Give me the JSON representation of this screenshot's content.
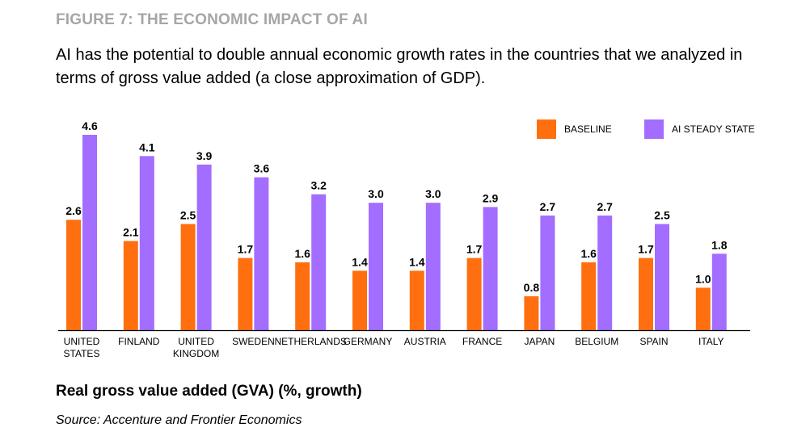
{
  "figure_label": "FIGURE 7: THE ECONOMIC IMPACT OF AI",
  "subtitle": "AI has the potential to double annual economic growth rates in the countries that we analyzed in terms of gross value added (a close approximation of GDP).",
  "caption": "Real gross value added (GVA) (%, growth)",
  "source": "Source: Accenture and Frontier Economics",
  "colors": {
    "baseline": "#ff6f0f",
    "ai": "#a36dff",
    "axis": "#000000"
  },
  "chart_data": {
    "type": "bar",
    "categories": [
      "UNITED\nSTATES",
      "FINLAND",
      "UNITED\nKINGDOM",
      "SWEDEN",
      "NETHERLANDS",
      "GERMANY",
      "AUSTRIA",
      "FRANCE",
      "JAPAN",
      "BELGIUM",
      "SPAIN",
      "ITALY"
    ],
    "series": [
      {
        "name": "BASELINE",
        "values": [
          2.6,
          2.1,
          2.5,
          1.7,
          1.6,
          1.4,
          1.4,
          1.7,
          0.8,
          1.6,
          1.7,
          1.0
        ]
      },
      {
        "name": "AI STEADY STATE",
        "values": [
          4.6,
          4.1,
          3.9,
          3.6,
          3.2,
          3.0,
          3.0,
          2.9,
          2.7,
          2.7,
          2.5,
          1.8
        ]
      }
    ],
    "data_labels": [
      [
        "2.6",
        "2.1",
        "2.5",
        "1.7",
        "1.6",
        "1.4",
        "1.4",
        "1.7",
        "0.8",
        "1.6",
        "1.7",
        "1.0"
      ],
      [
        "4.6",
        "4.1",
        "3.9",
        "3.6",
        "3.2",
        "3.0",
        "3.0",
        "2.9",
        "2.7",
        "2.7",
        "2.5",
        "1.8"
      ]
    ],
    "ylim": [
      0,
      4.6
    ],
    "grid": false,
    "legend_position": "top-right",
    "xlabel": "",
    "ylabel": ""
  }
}
